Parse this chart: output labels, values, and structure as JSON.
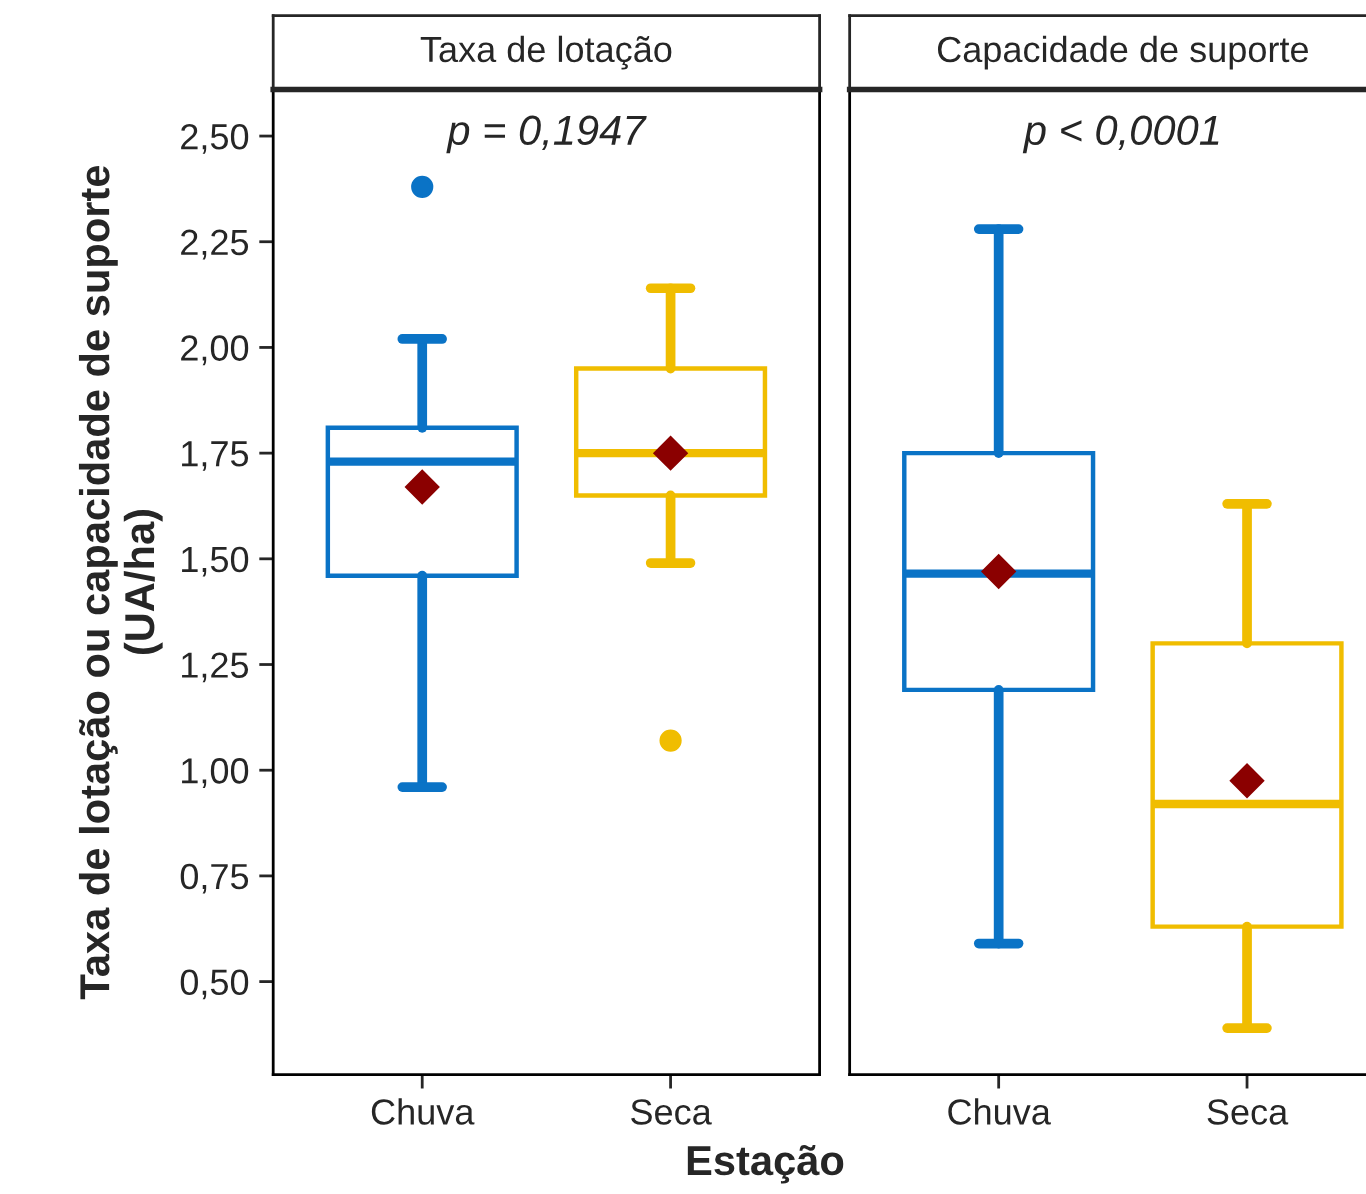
{
  "chart_data": [
    {
      "type": "box",
      "title": "Taxa de lotação",
      "xlabel": "Estação",
      "ylabel": "Taxa de lotação ou capacidade de suporte\n(UA/ha)",
      "categories": [
        "Chuva",
        "Seca"
      ],
      "colors": [
        "#0a73c6",
        "#f0bd00"
      ],
      "boxes": [
        {
          "low": 0.96,
          "q1": 1.46,
          "median": 1.73,
          "q3": 1.81,
          "high": 2.02,
          "mean": 1.67,
          "outliers": [
            2.38
          ]
        },
        {
          "low": 1.49,
          "q1": 1.65,
          "median": 1.75,
          "q3": 1.95,
          "high": 2.14,
          "mean": 1.75,
          "outliers": [
            1.07
          ]
        }
      ],
      "ylim": [
        0.28,
        2.61
      ],
      "yticks": [
        {
          "value": 0.5,
          "label": "0,50"
        },
        {
          "value": 0.75,
          "label": "0,75"
        },
        {
          "value": 1.0,
          "label": "1,00"
        },
        {
          "value": 1.25,
          "label": "1,25"
        },
        {
          "value": 1.5,
          "label": "1,50"
        },
        {
          "value": 1.75,
          "label": "1,75"
        },
        {
          "value": 2.0,
          "label": "2,00"
        },
        {
          "value": 2.25,
          "label": "2,25"
        },
        {
          "value": 2.5,
          "label": "2,50"
        }
      ],
      "annotations": [
        "p = 0,1947"
      ],
      "grid": false,
      "legend": false
    },
    {
      "type": "box",
      "title": "Capacidade de suporte",
      "categories": [
        "Chuva",
        "Seca"
      ],
      "colors": [
        "#0a73c6",
        "#f0bd00"
      ],
      "boxes": [
        {
          "low": 0.59,
          "q1": 1.19,
          "median": 1.465,
          "q3": 1.75,
          "high": 2.28,
          "mean": 1.47
        },
        {
          "low": 0.39,
          "q1": 0.63,
          "median": 0.92,
          "q3": 1.3,
          "high": 1.63,
          "mean": 0.975
        }
      ],
      "ylim": [
        0.28,
        2.61
      ],
      "tick_labels": "x",
      "annotations": [
        "p < 0,0001"
      ],
      "grid": false,
      "legend": false
    }
  ]
}
